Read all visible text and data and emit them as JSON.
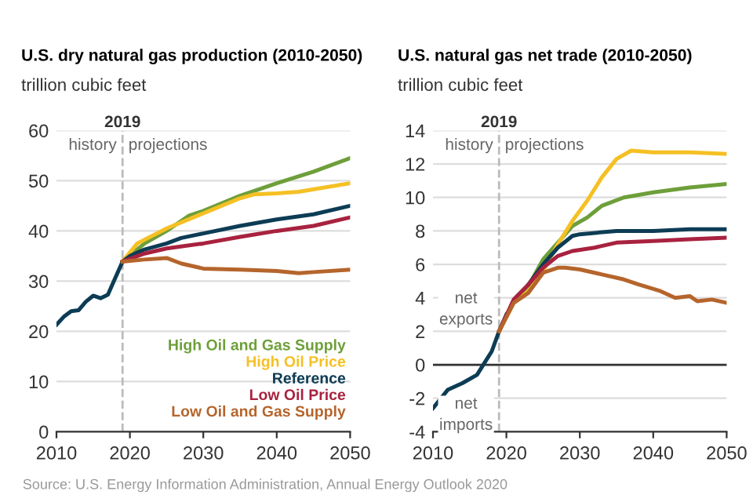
{
  "chart_data": [
    {
      "type": "line",
      "title": "U.S. dry natural gas production (2010-2050)",
      "ylabel": "trillion cubic feet",
      "xlim": [
        2010,
        2050
      ],
      "xticks": [
        2010,
        2020,
        2030,
        2040,
        2050
      ],
      "ylim": [
        0,
        60
      ],
      "yticks": [
        0,
        10,
        20,
        30,
        40,
        50,
        60
      ],
      "grid": "y",
      "ref_lines": [
        {
          "axis": "x",
          "value": 2019,
          "label": "2019",
          "color": "#bbbbbb",
          "line_style": "dashed"
        }
      ],
      "annotations": [
        "history",
        "projections",
        "Source: U.S. Energy Information Administration, Annual Energy Outlook 2020"
      ],
      "series": [
        {
          "name": "High Oil and Gas Supply",
          "color": "#6e9f3a",
          "x": [
            2019,
            2022,
            2025,
            2028,
            2030,
            2035,
            2040,
            2045,
            2050
          ],
          "values": [
            33.9,
            37.5,
            40,
            43,
            44,
            47,
            49.5,
            51.8,
            54.5
          ]
        },
        {
          "name": "High Oil Price",
          "color": "#f5c024",
          "x": [
            2019,
            2021,
            2025,
            2030,
            2035,
            2037,
            2040,
            2043,
            2050
          ],
          "values": [
            33.9,
            37.5,
            40.5,
            43.5,
            46.5,
            47.3,
            47.5,
            47.8,
            49.5
          ]
        },
        {
          "name": "Reference",
          "color": "#0d3c55",
          "x": [
            2010,
            2011,
            2012,
            2013,
            2014,
            2015,
            2016,
            2017,
            2018,
            2019,
            2020,
            2022,
            2025,
            2027,
            2030,
            2035,
            2040,
            2045,
            2050
          ],
          "values": [
            21.3,
            22.9,
            24.0,
            24.2,
            25.9,
            27.1,
            26.6,
            27.3,
            30.6,
            33.9,
            35,
            36.3,
            37.5,
            38.6,
            39.5,
            41,
            42.3,
            43.3,
            45
          ]
        },
        {
          "name": "Low Oil Price",
          "color": "#a8223f",
          "x": [
            2019,
            2022,
            2025,
            2030,
            2035,
            2040,
            2045,
            2050
          ],
          "values": [
            33.9,
            35.5,
            36.5,
            37.5,
            38.8,
            40,
            41,
            42.7
          ]
        },
        {
          "name": "Low Oil and Gas Supply",
          "color": "#b5652c",
          "x": [
            2019,
            2022,
            2025,
            2027,
            2030,
            2035,
            2040,
            2043,
            2045,
            2050
          ],
          "values": [
            33.9,
            34.3,
            34.6,
            33.5,
            32.5,
            32.3,
            32,
            31.6,
            31.8,
            32.3
          ]
        }
      ]
    },
    {
      "type": "line",
      "title": "U.S. natural gas net trade (2010-2050)",
      "ylabel": "trillion cubic feet",
      "xlim": [
        2010,
        2050
      ],
      "xticks": [
        2010,
        2020,
        2030,
        2040,
        2050
      ],
      "ylim": [
        -4,
        14
      ],
      "yticks": [
        {
          "value": -4,
          "label": "-4"
        },
        {
          "value": -2,
          "label": "-2"
        },
        0,
        2,
        4,
        6,
        8,
        10,
        12,
        14
      ],
      "grid": "y",
      "ref_lines": [
        {
          "axis": "x",
          "value": 2019,
          "label": "2019",
          "color": "#bbbbbb",
          "line_style": "dashed"
        },
        {
          "axis": "y",
          "value": 0,
          "color": "#333333",
          "line_style": "solid"
        }
      ],
      "annotations": [
        "history",
        "projections",
        {
          "text": "net\nexports",
          "x": 2014.5,
          "y": 3.3
        },
        {
          "text": "net\nimports",
          "x": 2014.5,
          "y": -3.0
        }
      ],
      "series": [
        {
          "color": "#6e9f3a",
          "x": [
            2019,
            2021,
            2023,
            2025,
            2027,
            2029,
            2031,
            2033,
            2036,
            2040,
            2045,
            2050
          ],
          "values": [
            2.0,
            3.8,
            4.7,
            6.3,
            7.3,
            8.3,
            8.8,
            9.5,
            10,
            10.3,
            10.6,
            10.8
          ]
        },
        {
          "color": "#f5c024",
          "x": [
            2019,
            2021,
            2023,
            2025,
            2027,
            2029,
            2031,
            2033,
            2035,
            2037,
            2040,
            2045,
            2050
          ],
          "values": [
            2.0,
            3.7,
            4.4,
            5.6,
            7.2,
            8.6,
            9.8,
            11.2,
            12.3,
            12.8,
            12.7,
            12.7,
            12.6
          ]
        },
        {
          "color": "#0d3c55",
          "x": [
            2010,
            2012,
            2014,
            2016,
            2017,
            2018,
            2019,
            2020,
            2021,
            2023,
            2025,
            2027,
            2029,
            2030,
            2035,
            2040,
            2045,
            2050
          ],
          "values": [
            -2.6,
            -1.5,
            -1.1,
            -0.6,
            0.1,
            0.8,
            2.0,
            3.0,
            null,
            4.8,
            6.0,
            7.0,
            7.7,
            7.8,
            8.0,
            8.0,
            8.1,
            8.1
          ]
        },
        {
          "color": "#a8223f",
          "x": [
            2019,
            2021,
            2023,
            2025,
            2027,
            2029,
            2032,
            2035,
            2040,
            2045,
            2050
          ],
          "values": [
            2.0,
            3.9,
            4.8,
            5.8,
            6.5,
            6.8,
            7.0,
            7.3,
            7.4,
            7.5,
            7.6
          ]
        },
        {
          "color": "#b5652c",
          "x": [
            2019,
            2021,
            2023,
            2025,
            2027,
            2028,
            2030,
            2033,
            2036,
            2038,
            2041,
            2043,
            2045,
            2046,
            2048,
            2050
          ],
          "values": [
            2.0,
            3.7,
            4.3,
            5.5,
            5.8,
            5.8,
            5.7,
            5.4,
            5.1,
            4.8,
            4.4,
            4.0,
            4.1,
            3.8,
            3.9,
            3.7
          ]
        }
      ]
    }
  ]
}
